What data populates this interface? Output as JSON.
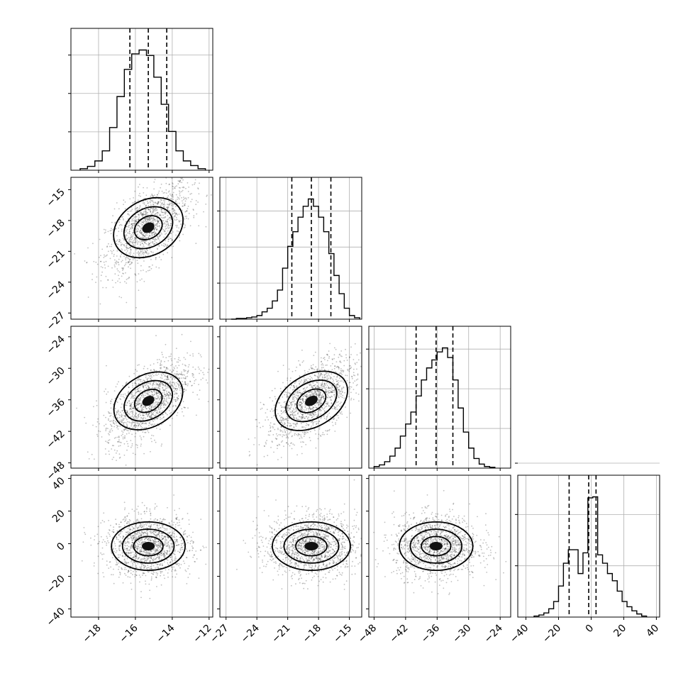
{
  "chart_data": {
    "type": "corner",
    "parameters": [
      {
        "range": [
          -19.5,
          -11.8
        ],
        "ticks": [
          -18,
          -16,
          -14,
          -12
        ]
      },
      {
        "range": [
          -27.6,
          -13.8
        ],
        "ticks": [
          -27,
          -24,
          -21,
          -18,
          -15
        ]
      },
      {
        "range": [
          -49.0,
          -22.0
        ],
        "ticks": [
          -48,
          -42,
          -36,
          -30,
          -24
        ]
      },
      {
        "range": [
          -45.0,
          42.0
        ],
        "ticks": [
          -40,
          -20,
          0,
          20,
          40
        ]
      }
    ],
    "histograms": [
      {
        "quantiles": [
          -16.3,
          -15.3,
          -14.3
        ],
        "edges": [
          -19.0,
          -18.6,
          -18.2,
          -17.8,
          -17.4,
          -17.0,
          -16.6,
          -16.2,
          -15.8,
          -15.4,
          -15.0,
          -14.6,
          -14.2,
          -13.8,
          -13.4,
          -13.0,
          -12.6,
          -12.2
        ],
        "counts": [
          2,
          5,
          12,
          25,
          55,
          95,
          130,
          150,
          155,
          148,
          120,
          85,
          50,
          25,
          12,
          6,
          2
        ]
      },
      {
        "quantiles": [
          -20.6,
          -18.7,
          -16.8
        ],
        "edges": [
          -26.5,
          -26.0,
          -25.5,
          -25.0,
          -24.5,
          -24.0,
          -23.5,
          -23.0,
          -22.5,
          -22.0,
          -21.5,
          -21.0,
          -20.5,
          -20.0,
          -19.5,
          -19.0,
          -18.5,
          -18.0,
          -17.5,
          -17.0,
          -16.5,
          -16.0,
          -15.5,
          -15.0,
          -14.5,
          -14.0
        ],
        "counts": [
          0,
          1,
          1,
          2,
          3,
          5,
          10,
          15,
          25,
          40,
          70,
          100,
          120,
          140,
          155,
          165,
          155,
          140,
          120,
          90,
          60,
          35,
          15,
          5,
          2
        ]
      },
      {
        "quantiles": [
          -40.0,
          -36.2,
          -33.0
        ],
        "edges": [
          -48.0,
          -47.0,
          -46.0,
          -45.0,
          -44.0,
          -43.0,
          -42.0,
          -41.0,
          -40.0,
          -39.0,
          -38.0,
          -37.0,
          -36.0,
          -35.0,
          -34.0,
          -33.0,
          -32.0,
          -31.0,
          -30.0,
          -29.0,
          -28.0,
          -27.0,
          -26.0,
          -25.0
        ],
        "counts": [
          2,
          4,
          8,
          15,
          25,
          40,
          55,
          70,
          90,
          110,
          125,
          135,
          145,
          150,
          138,
          110,
          75,
          45,
          25,
          12,
          5,
          2,
          1
        ]
      },
      {
        "quantiles": [
          -13.5,
          -1.5,
          3.0
        ],
        "edges": [
          -35,
          -32,
          -29,
          -26,
          -23,
          -20,
          -17,
          -14,
          -11,
          -8,
          -5,
          -2,
          1,
          4,
          7,
          10,
          13,
          16,
          19,
          22,
          25,
          28,
          31,
          34
        ],
        "counts": [
          1,
          2,
          4,
          8,
          15,
          30,
          52,
          65,
          65,
          42,
          62,
          115,
          116,
          60,
          52,
          42,
          35,
          25,
          15,
          10,
          6,
          3,
          1
        ]
      }
    ]
  }
}
